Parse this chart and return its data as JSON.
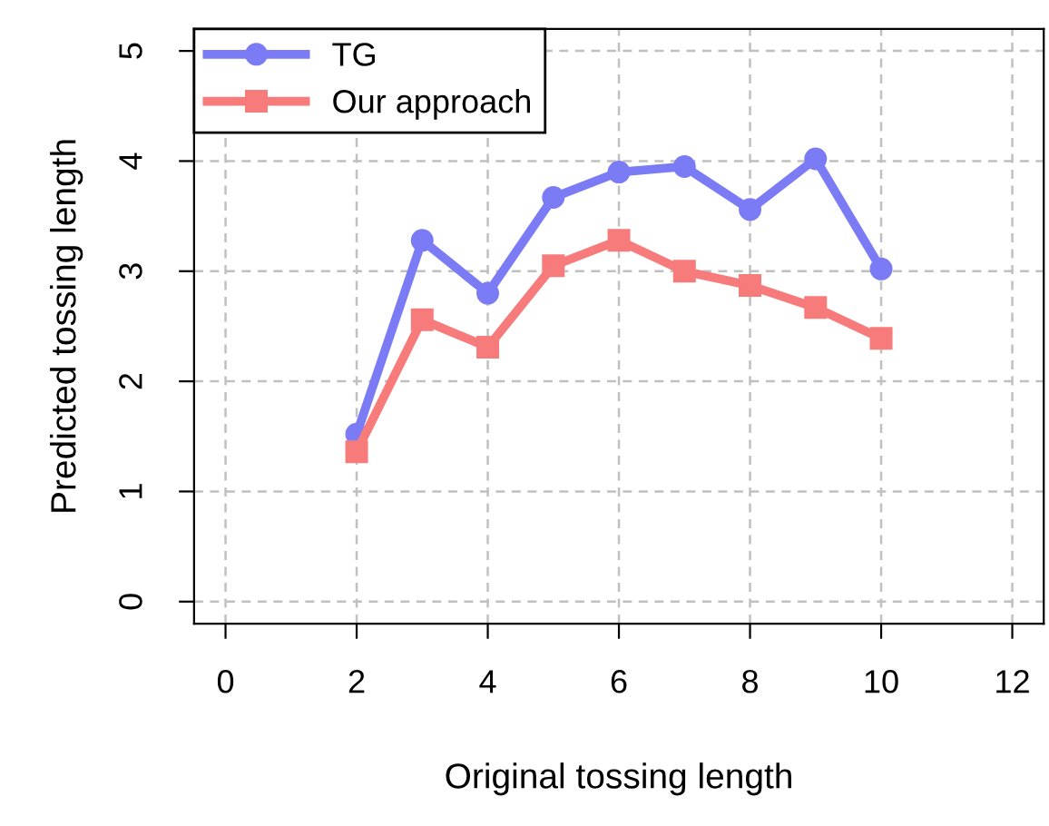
{
  "chart_data": {
    "type": "line",
    "xlabel": "Original tossing length",
    "ylabel": "Predicted tossing length",
    "x": [
      2,
      3,
      4,
      5,
      6,
      7,
      8,
      9,
      10
    ],
    "series": [
      {
        "name": "TG",
        "color": "#7b7bf5",
        "marker": "circle",
        "values": [
          1.52,
          3.28,
          2.8,
          3.67,
          3.9,
          3.95,
          3.56,
          4.02,
          3.02
        ]
      },
      {
        "name": "Our approach",
        "color": "#f77b7b",
        "marker": "square",
        "values": [
          1.36,
          2.56,
          2.31,
          3.05,
          3.28,
          3.0,
          2.87,
          2.67,
          2.39
        ]
      }
    ],
    "xlim": [
      -0.48,
      12.48
    ],
    "ylim": [
      -0.2,
      5.2
    ],
    "xticks": [
      0,
      2,
      4,
      6,
      8,
      10,
      12
    ],
    "yticks": [
      0,
      1,
      2,
      3,
      4,
      5
    ],
    "grid": true,
    "legend": "top left",
    "line_style": "solid"
  }
}
